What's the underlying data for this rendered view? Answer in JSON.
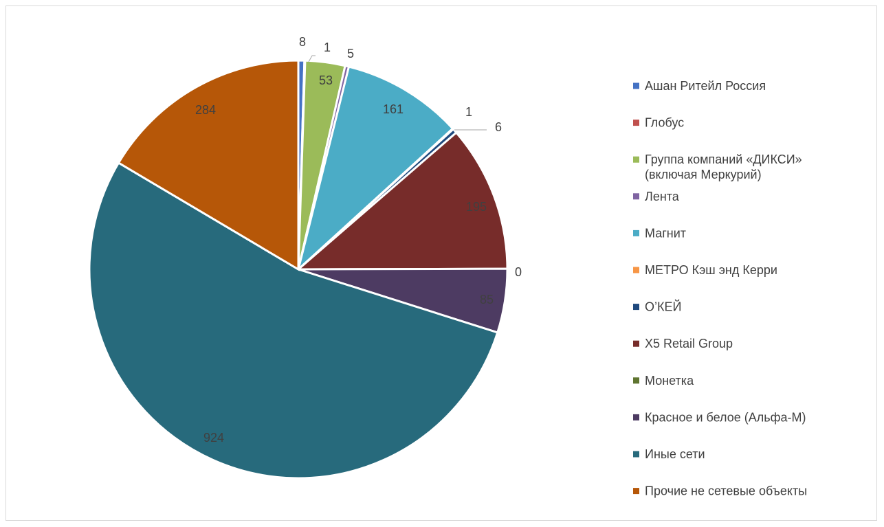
{
  "chart_data": {
    "type": "pie",
    "title": "",
    "legend_position": "right",
    "categories": [
      "Ашан Ритейл Россия",
      "Глобус",
      "Группа компаний «ДИКСИ» (включая Меркурий)",
      "Лента",
      "Магнит",
      "МЕТРО Кэш энд Керри",
      "О’КЕЙ",
      "X5 Retail Group",
      "Монетка",
      "Красное и белое (Альфа-М)",
      "Иные  сети",
      "Прочие не сетевые объекты"
    ],
    "legend_lines": [
      [
        "Ашан Ритейл Россия"
      ],
      [
        "Глобус"
      ],
      [
        "Группа компаний «ДИКСИ»",
        "(включая Меркурий)"
      ],
      [
        "Лента"
      ],
      [
        "Магнит"
      ],
      [
        "МЕТРО Кэш энд Керри"
      ],
      [
        "О’КЕЙ"
      ],
      [
        "X5 Retail Group"
      ],
      [
        "Монетка"
      ],
      [
        "Красное и белое (Альфа-М)"
      ],
      [
        "Иные  сети"
      ],
      [
        "Прочие не сетевые объекты"
      ]
    ],
    "values": [
      8,
      1,
      53,
      5,
      161,
      1,
      6,
      195,
      0,
      85,
      924,
      284
    ],
    "labels": [
      "8",
      "1",
      "53",
      "5",
      "161",
      "1",
      "6",
      "195",
      "0",
      "85",
      "924",
      "284"
    ],
    "colors": [
      "#4472C4",
      "#C0504D",
      "#9BBB59",
      "#8064A2",
      "#4BACC6",
      "#F79646",
      "#1F497D",
      "#772C2A",
      "#5F7530",
      "#4D3B62",
      "#276A7C",
      "#B65708"
    ]
  }
}
